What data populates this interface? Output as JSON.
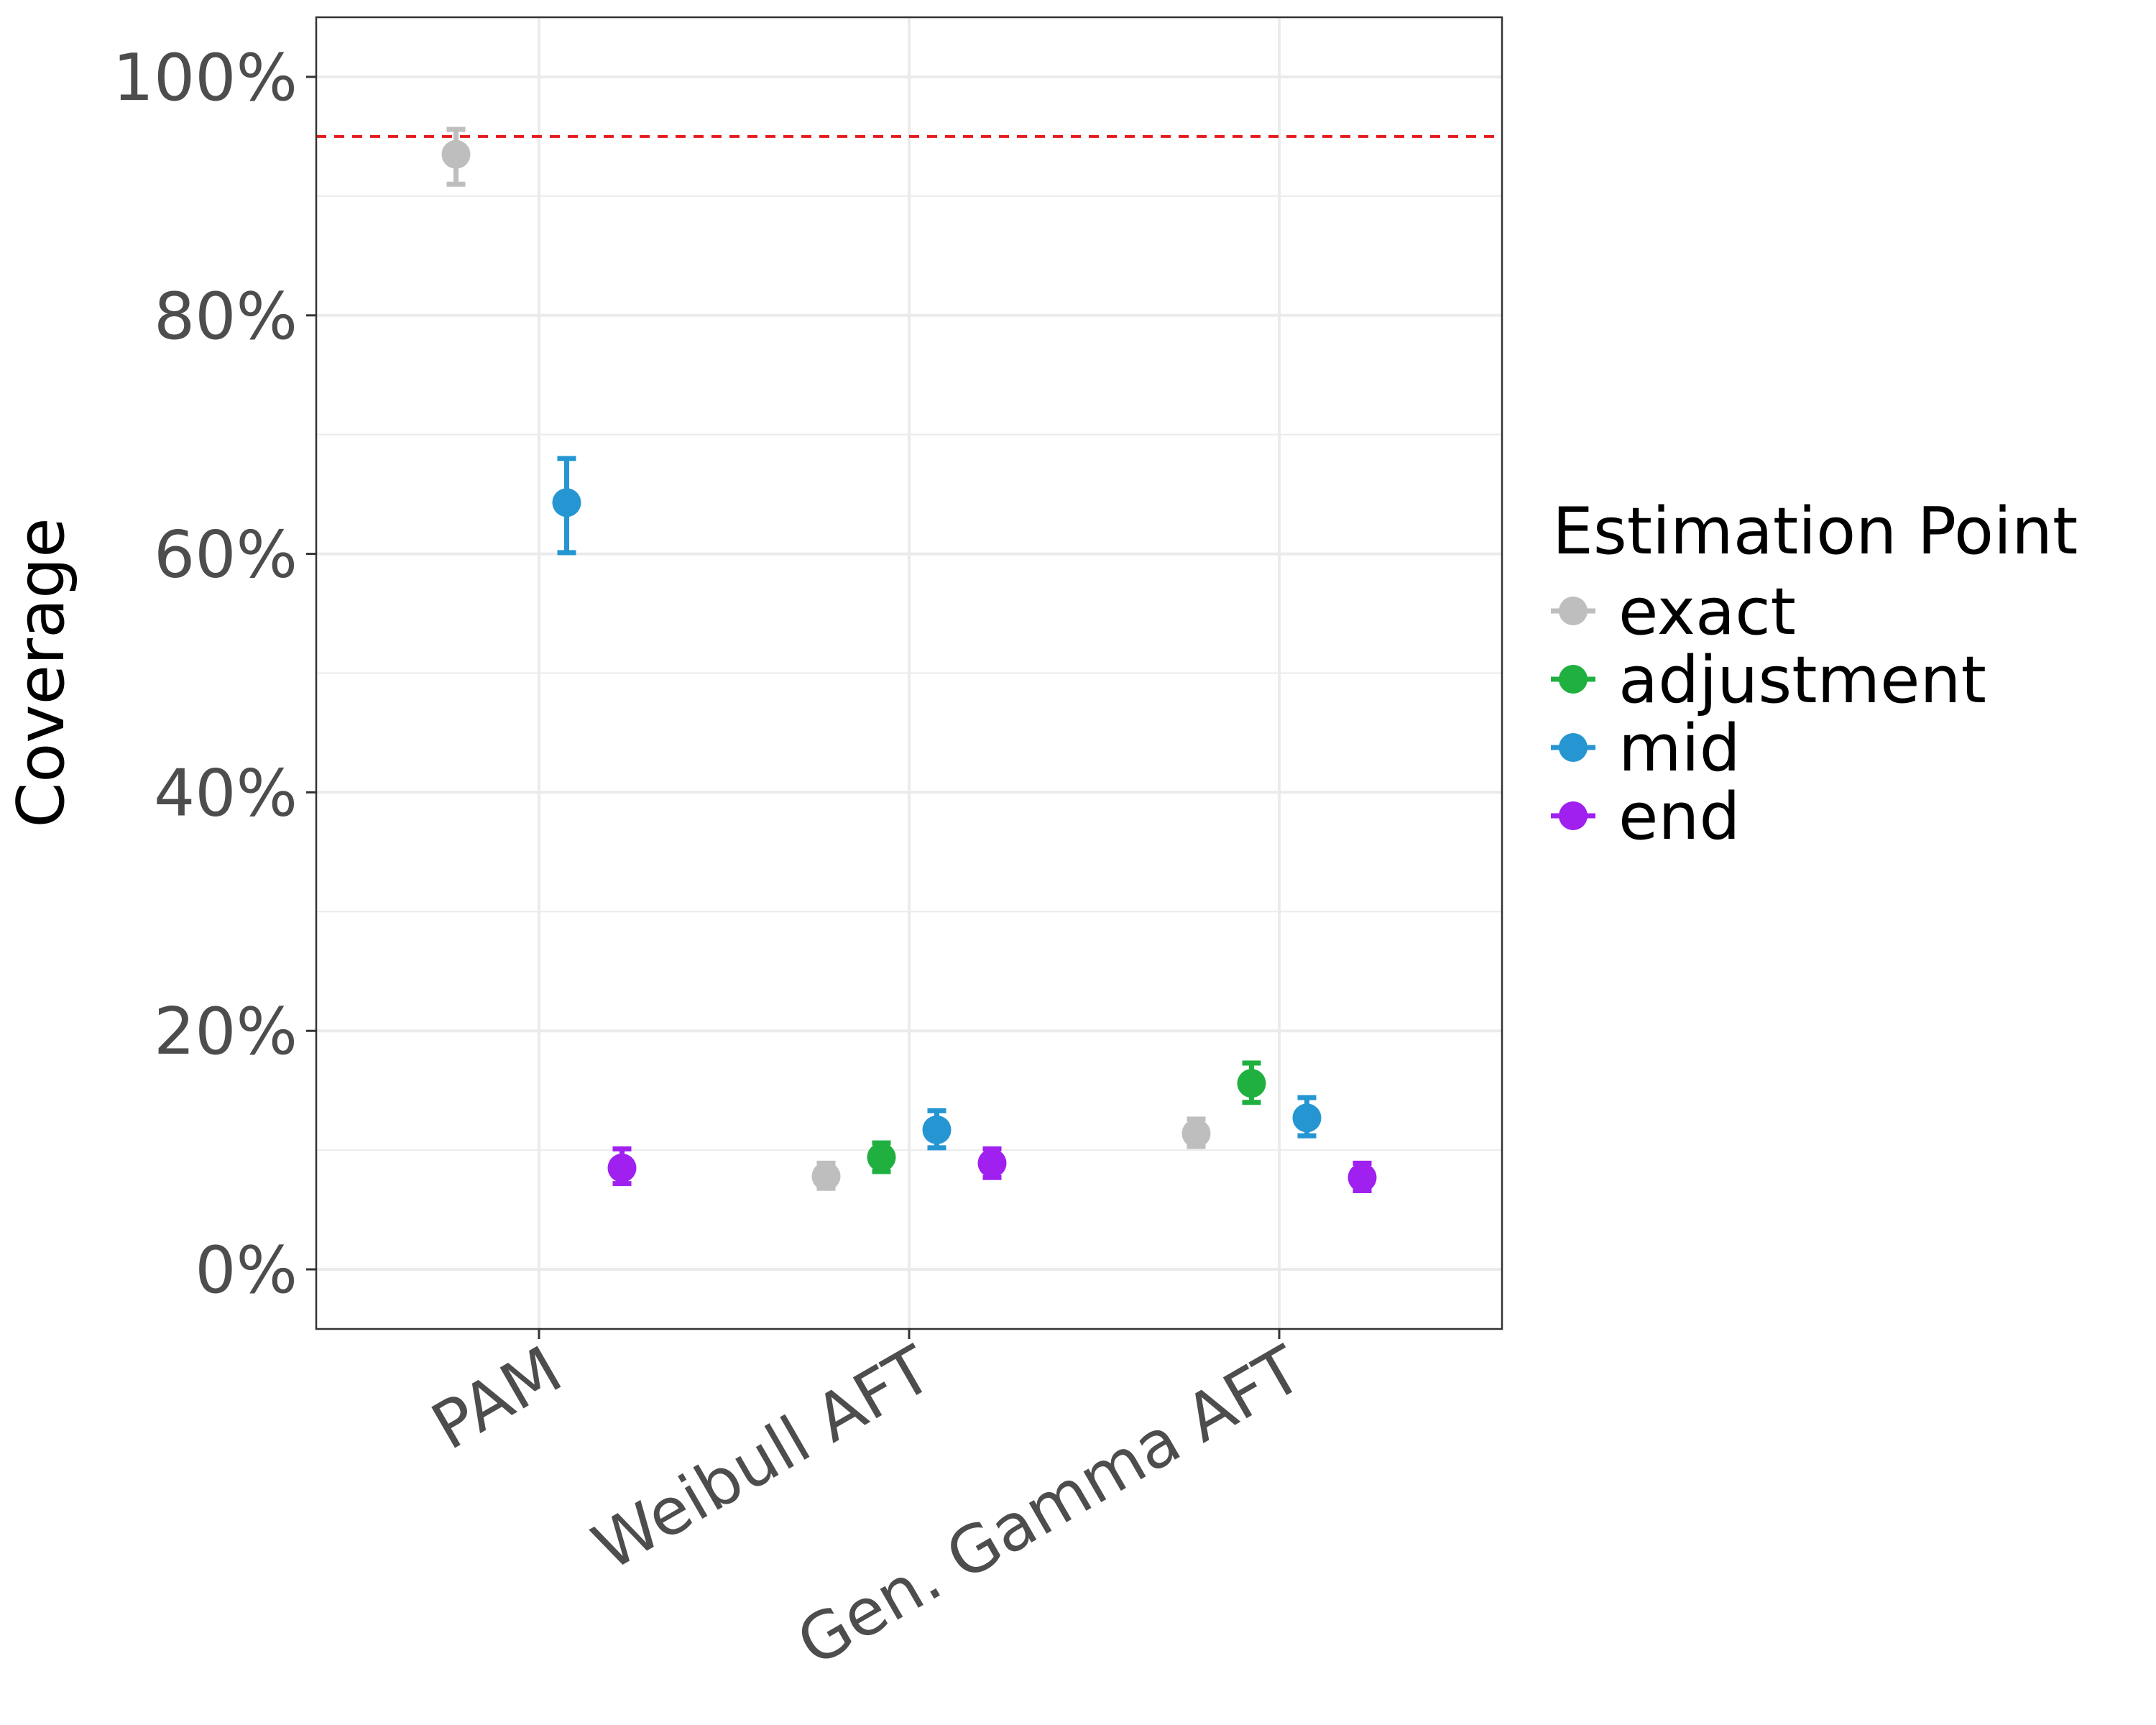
{
  "chart_data": {
    "type": "scatter",
    "title": "",
    "xlabel": "",
    "ylabel": "Coverage",
    "categories": [
      "PAM",
      "Weibull AFT",
      "Gen. Gamma AFT"
    ],
    "yticks": [
      "0%",
      "20%",
      "40%",
      "60%",
      "80%",
      "100%"
    ],
    "ylim": [
      -5,
      105
    ],
    "reference_line": {
      "value": 95,
      "color": "#e41a1c",
      "style": "dashed"
    },
    "grid": true,
    "legend": {
      "title": "Estimation Point",
      "placement": "right"
    },
    "series": [
      {
        "name": "exact",
        "color": "#bebebe",
        "values": [
          93.5,
          7.8,
          11.4
        ],
        "lower": [
          91.0,
          6.8,
          10.3
        ],
        "upper": [
          95.6,
          8.9,
          12.6
        ]
      },
      {
        "name": "adjustment",
        "color": "#1fb040",
        "values": [
          null,
          9.4,
          15.6
        ],
        "lower": [
          null,
          8.2,
          14.0
        ],
        "upper": [
          null,
          10.6,
          17.3
        ]
      },
      {
        "name": "mid",
        "color": "#2596d2",
        "values": [
          64.3,
          11.7,
          12.7
        ],
        "lower": [
          60.1,
          10.2,
          11.2
        ],
        "upper": [
          68.0,
          13.3,
          14.4
        ]
      },
      {
        "name": "end",
        "color": "#a020f0",
        "values": [
          8.5,
          8.9,
          7.7
        ],
        "lower": [
          7.2,
          7.7,
          6.6
        ],
        "upper": [
          10.1,
          10.1,
          8.9
        ]
      }
    ]
  }
}
